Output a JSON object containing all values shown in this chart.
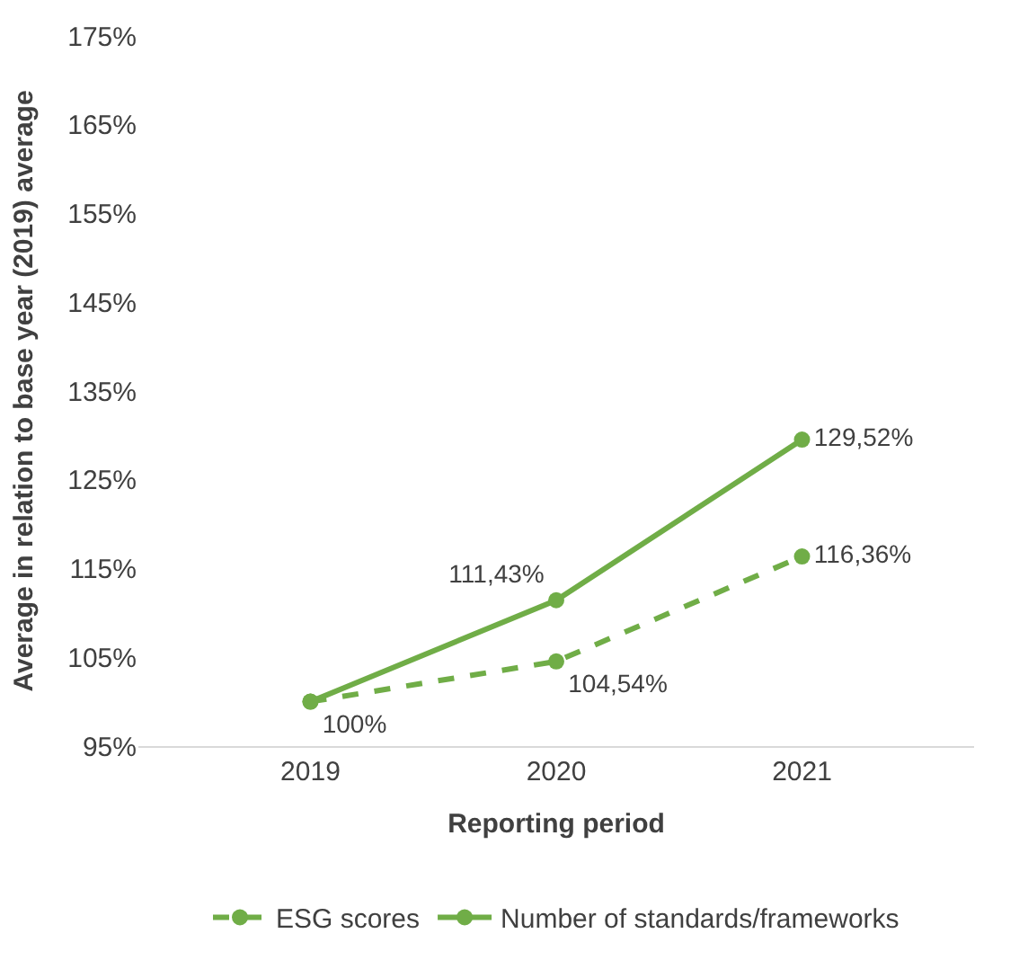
{
  "chart_data": {
    "type": "line",
    "xlabel": "Reporting period",
    "ylabel": "Average in relation to base year (2019) average",
    "categories": [
      "2019",
      "2020",
      "2021"
    ],
    "series": [
      {
        "name": "ESG scores",
        "color": "#70ad47",
        "line_style": "dashed",
        "values": [
          100,
          104.54,
          116.36
        ],
        "value_labels": [
          null,
          "104,54%",
          "116,36%"
        ]
      },
      {
        "name": "Number of standards/frameworks",
        "color": "#70ad47",
        "line_style": "solid",
        "values": [
          100,
          111.43,
          129.52
        ],
        "value_labels": [
          "100%",
          "111,43%",
          "129,52%"
        ]
      }
    ],
    "ylim": [
      95,
      175
    ],
    "yticks": [
      {
        "value": 95,
        "label": "95%"
      },
      {
        "value": 105,
        "label": "105%"
      },
      {
        "value": 115,
        "label": "115%"
      },
      {
        "value": 125,
        "label": "125%"
      },
      {
        "value": 135,
        "label": "135%"
      },
      {
        "value": 145,
        "label": "145%"
      },
      {
        "value": 155,
        "label": "155%"
      },
      {
        "value": 165,
        "label": "165%"
      },
      {
        "value": 175,
        "label": "175%"
      }
    ],
    "marker": "circle",
    "legend": "bottom"
  }
}
